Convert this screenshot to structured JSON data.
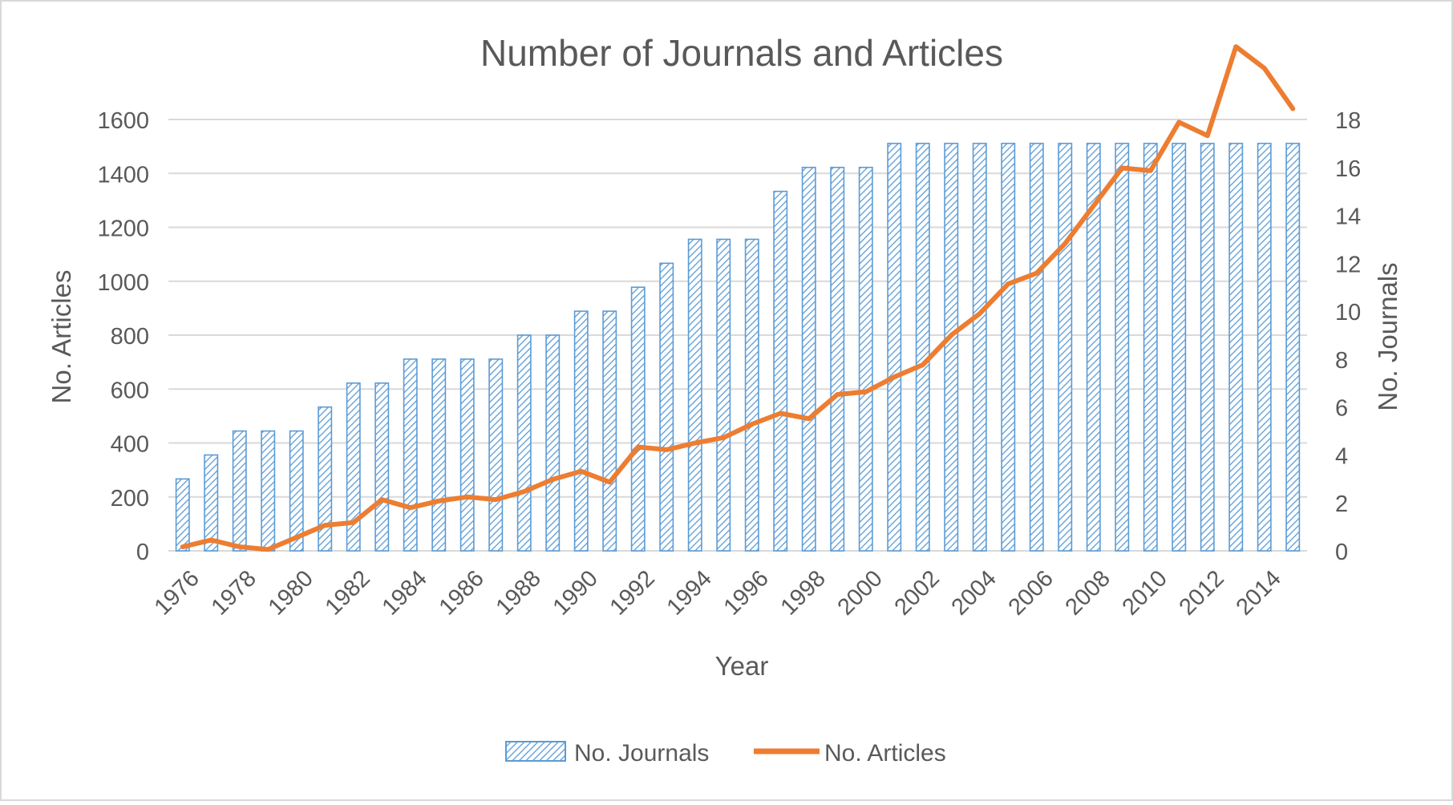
{
  "chart_data": {
    "type": "bar",
    "title": "Number of Journals and Articles",
    "xlabel": "Year",
    "ylabel": "No. Articles",
    "y2label": "No. Journals",
    "ylim": [
      0,
      1600
    ],
    "y2lim": [
      0,
      18
    ],
    "yticks": [
      0,
      200,
      400,
      600,
      800,
      1000,
      1200,
      1400,
      1600
    ],
    "y2ticks": [
      0,
      2,
      4,
      6,
      8,
      10,
      12,
      14,
      16,
      18
    ],
    "xtick_labels": [
      "1976",
      "1978",
      "1980",
      "1982",
      "1984",
      "1986",
      "1988",
      "1990",
      "1992",
      "1994",
      "1996",
      "1998",
      "2000",
      "2002",
      "2004",
      "2006",
      "2008",
      "2010",
      "2012",
      "2014"
    ],
    "x": [
      1976,
      1977,
      1978,
      1979,
      1980,
      1981,
      1982,
      1983,
      1984,
      1985,
      1986,
      1987,
      1988,
      1989,
      1990,
      1991,
      1992,
      1993,
      1994,
      1995,
      1996,
      1997,
      1998,
      1999,
      2000,
      2001,
      2002,
      2003,
      2004,
      2005,
      2006,
      2007,
      2008,
      2009,
      2010,
      2011,
      2012,
      2013,
      2014,
      2015
    ],
    "series": [
      {
        "name": "No. Journals",
        "type": "bar",
        "axis": "right",
        "color": "#5B9BD5",
        "values": [
          3,
          4,
          5,
          5,
          5,
          6,
          7,
          7,
          8,
          8,
          8,
          8,
          9,
          9,
          10,
          10,
          11,
          12,
          13,
          13,
          13,
          15,
          16,
          16,
          16,
          17,
          17,
          17,
          17,
          17,
          17,
          17,
          17,
          17,
          17,
          17,
          17,
          17,
          17,
          17
        ]
      },
      {
        "name": "No. Articles",
        "type": "line",
        "axis": "left",
        "color": "#ED7D31",
        "values": [
          15,
          40,
          15,
          5,
          50,
          95,
          105,
          190,
          160,
          185,
          200,
          190,
          220,
          265,
          295,
          255,
          385,
          375,
          400,
          420,
          470,
          510,
          490,
          580,
          590,
          645,
          690,
          800,
          880,
          990,
          1030,
          1140,
          1280,
          1420,
          1410,
          1590,
          1540,
          1870,
          1790,
          1640
        ]
      }
    ],
    "grid": true,
    "legend_position": "bottom"
  }
}
